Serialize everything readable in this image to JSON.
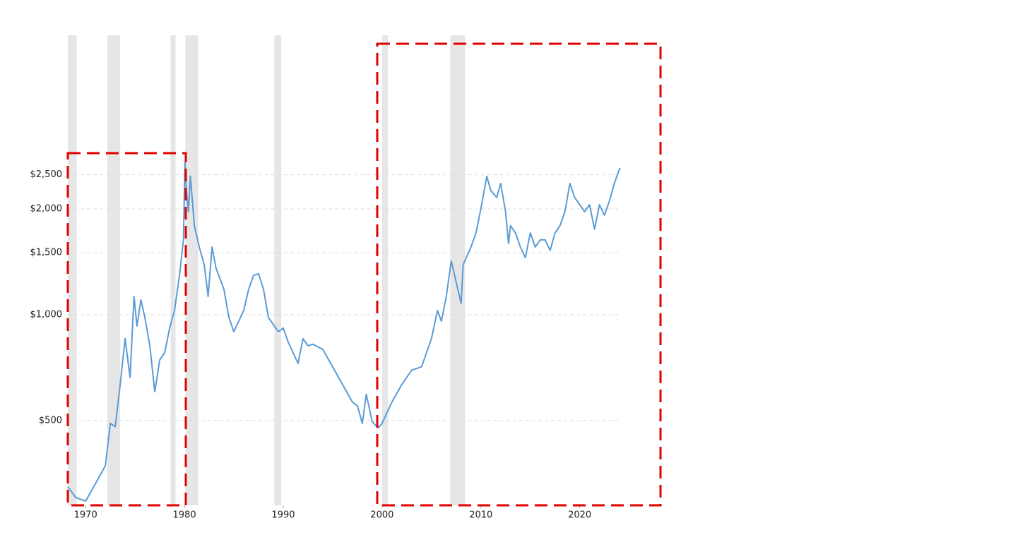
{
  "chart_data": {
    "type": "line",
    "log_scale_y": true,
    "x": [
      1968.2,
      1969,
      1970,
      1971,
      1972,
      1972.5,
      1973,
      1973.5,
      1974,
      1974.5,
      1974.9,
      1975.2,
      1975.6,
      1976,
      1976.5,
      1977,
      1977.5,
      1978,
      1978.5,
      1979,
      1979.5,
      1979.9,
      1980.05,
      1980.2,
      1980.4,
      1980.6,
      1981,
      1981.5,
      1982,
      1982.4,
      1982.8,
      1983.2,
      1984,
      1984.5,
      1985,
      1985.5,
      1986,
      1986.5,
      1987,
      1987.5,
      1988,
      1988.5,
      1989,
      1989.5,
      1990,
      1990.5,
      1991,
      1991.5,
      1992,
      1992.5,
      1993,
      1994,
      1995,
      1996,
      1997,
      1997.5,
      1998,
      1998.4,
      1999,
      1999.6,
      2000,
      2001,
      2002,
      2003,
      2004,
      2005,
      2005.6,
      2006,
      2006.5,
      2007,
      2007.5,
      2008,
      2008.2,
      2009,
      2009.5,
      2010,
      2010.6,
      2011,
      2011.6,
      2012,
      2012.5,
      2012.8,
      2013,
      2013.5,
      2014,
      2014.5,
      2015,
      2015.5,
      2016,
      2016.5,
      2017,
      2017.5,
      2018,
      2018.5,
      2019,
      2019.5,
      2020,
      2020.5,
      2021,
      2021.5,
      2022,
      2022.5,
      2023,
      2023.5,
      2024.07
    ],
    "series": [
      {
        "color": "#5b9bd5",
        "values": [
          324,
          302,
          295,
          331,
          372,
          491,
          480,
          633,
          855,
          663,
          1127,
          929,
          1102,
          982,
          816,
          604,
          744,
          779,
          916,
          1028,
          1295,
          1632,
          2710,
          2257,
          1963,
          2475,
          1791,
          1558,
          1388,
          1127,
          1558,
          1356,
          1181,
          982,
          895,
          959,
          1028,
          1181,
          1295,
          1307,
          1181,
          982,
          937,
          895,
          916,
          835,
          779,
          727,
          855,
          816,
          824,
          797,
          711,
          633,
          564,
          551,
          491,
          594,
          496,
          476,
          491,
          564,
          633,
          695,
          711,
          855,
          1028,
          959,
          1127,
          1422,
          1237,
          1077,
          1388,
          1558,
          1709,
          2007,
          2475,
          2257,
          2154,
          2361,
          1963,
          1594,
          1791,
          1709,
          1558,
          1453,
          1709,
          1558,
          1632,
          1632,
          1522,
          1709,
          1791,
          1963,
          2361,
          2154,
          2056,
          1963,
          2056,
          1750,
          2056,
          1918,
          2103,
          2361,
          2615
        ]
      }
    ],
    "shaded_ranges": [
      [
        1968.2,
        1969.1
      ],
      [
        1972.2,
        1973.5
      ],
      [
        1978.6,
        1979.1
      ],
      [
        1980.1,
        1981.4
      ],
      [
        1989.1,
        1989.8
      ],
      [
        2000.0,
        2000.6
      ],
      [
        2006.9,
        2008.4
      ]
    ],
    "xlim": [
      1968.2,
      2024.1
    ],
    "xticks": [
      1970,
      1980,
      1990,
      2000,
      2010,
      2020
    ],
    "ylim": [
      287,
      6233
    ],
    "yticks": [
      {
        "value": 500,
        "label": "$500"
      },
      {
        "value": 1000,
        "label": "$1,000"
      },
      {
        "value": 1500,
        "label": "$1,500"
      },
      {
        "value": 2000,
        "label": "$2,000"
      },
      {
        "value": 2500,
        "label": "$2,500"
      }
    ],
    "grid": true
  }
}
